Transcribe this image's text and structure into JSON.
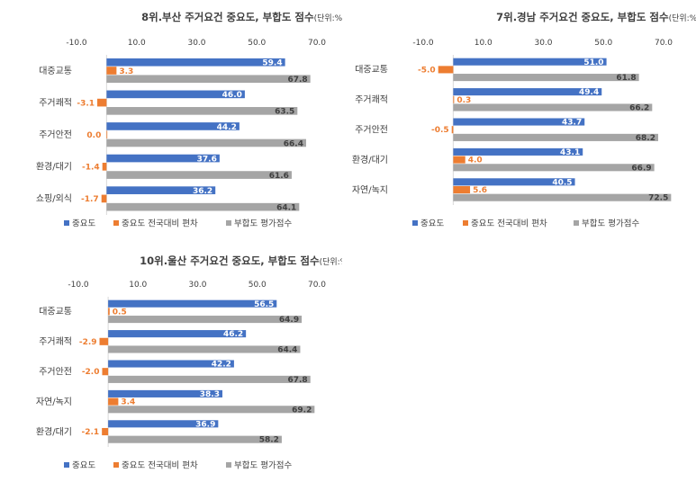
{
  "colors": {
    "importance": "#4472C4",
    "deviation": "#ED7D31",
    "fit": "#A5A5A5"
  },
  "chart_data": [
    {
      "type": "bar",
      "orientation": "horizontal",
      "title": "8위.부산 주거요건 중요도, 부합도 점수",
      "unit": "(단위:%,점)",
      "categories": [
        "대중교통",
        "주거쾌적",
        "주거안전",
        "환경/대기",
        "쇼핑/외식"
      ],
      "xlim": [
        -10,
        70
      ],
      "ticks": [
        "-10.0",
        "10.0",
        "30.0",
        "50.0",
        "70.0"
      ],
      "series": [
        {
          "name": "중요도",
          "values": [
            59.4,
            46.0,
            44.2,
            37.6,
            36.2
          ],
          "labels": [
            "59.4",
            "46.0",
            "44.2",
            "37.6",
            "36.2"
          ]
        },
        {
          "name": "중요도 전국대비 편차",
          "values": [
            3.3,
            -3.1,
            0.0,
            -1.4,
            -1.7
          ],
          "labels": [
            "3.3",
            "-3.1",
            "0.0",
            "-1.4",
            "-1.7"
          ]
        },
        {
          "name": "부합도 평가점수",
          "values": [
            67.8,
            63.5,
            66.4,
            61.6,
            64.1
          ],
          "labels": [
            "67.8",
            "63.5",
            "66.4",
            "61.6",
            "64.1"
          ]
        }
      ],
      "legend": "bottom",
      "grid": false
    },
    {
      "type": "bar",
      "orientation": "horizontal",
      "title": "7위.경남 주거요건 중요도, 부합도 점수",
      "unit": "(단위:%,점)",
      "categories": [
        "대중교통",
        "주거쾌적",
        "주거안전",
        "환경/대기",
        "자연/녹지"
      ],
      "xlim": [
        -10,
        70
      ],
      "ticks": [
        "-10.0",
        "10.0",
        "30.0",
        "50.0",
        "70.0"
      ],
      "series": [
        {
          "name": "중요도",
          "values": [
            51.0,
            49.4,
            43.7,
            43.1,
            40.5
          ],
          "labels": [
            "51.0",
            "49.4",
            "43.7",
            "43.1",
            "40.5"
          ]
        },
        {
          "name": "중요도 전국대비 편차",
          "values": [
            -5.0,
            0.3,
            -0.5,
            4.0,
            5.6
          ],
          "labels": [
            "-5.0",
            "0.3",
            "-0.5",
            "4.0",
            "5.6"
          ]
        },
        {
          "name": "부합도 평가점수",
          "values": [
            61.8,
            66.2,
            68.2,
            66.9,
            72.5
          ],
          "labels": [
            "61.8",
            "66.2",
            "68.2",
            "66.9",
            "72.5"
          ]
        }
      ],
      "legend": "bottom",
      "grid": false
    },
    {
      "type": "bar",
      "orientation": "horizontal",
      "title": "10위.울산 주거요건 중요도, 부합도 점수",
      "unit": "(단위:%,점)",
      "categories": [
        "대중교통",
        "주거쾌적",
        "주거안전",
        "자연/녹지",
        "환경/대기"
      ],
      "xlim": [
        -10,
        70
      ],
      "ticks": [
        "-10.0",
        "10.0",
        "30.0",
        "50.0",
        "70.0"
      ],
      "series": [
        {
          "name": "중요도",
          "values": [
            56.5,
            46.2,
            42.2,
            38.3,
            36.9
          ],
          "labels": [
            "56.5",
            "46.2",
            "42.2",
            "38.3",
            "36.9"
          ]
        },
        {
          "name": "중요도 전국대비 편차",
          "values": [
            0.5,
            -2.9,
            -2.0,
            3.4,
            -2.1
          ],
          "labels": [
            "0.5",
            "-2.9",
            "-2.0",
            "3.4",
            "-2.1"
          ]
        },
        {
          "name": "부합도 평가점수",
          "values": [
            64.9,
            64.4,
            67.8,
            69.2,
            58.2
          ],
          "labels": [
            "64.9",
            "64.4",
            "67.8",
            "69.2",
            "58.2"
          ]
        }
      ],
      "legend": "bottom",
      "grid": false
    }
  ]
}
